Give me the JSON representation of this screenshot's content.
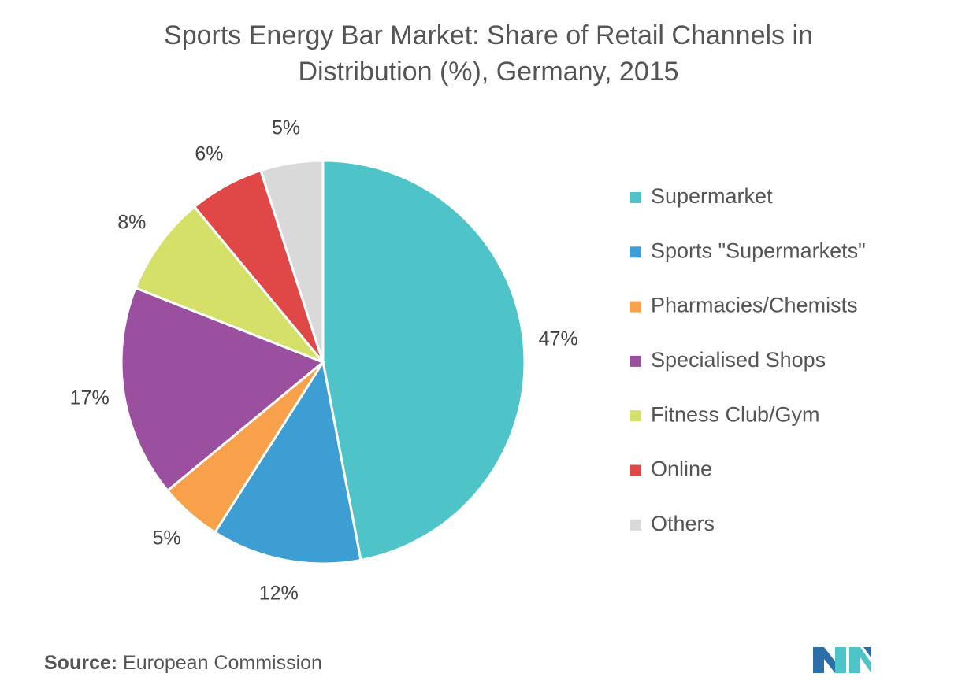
{
  "chart_data": {
    "type": "pie",
    "title": "Sports Energy Bar Market: Share of Retail Channels in Distribution (%),  Germany, 2015",
    "categories": [
      "Supermarket",
      "Sports \"Supermarkets\"",
      "Pharmacies/Chemists",
      "Specialised Shops",
      "Fitness Club/Gym",
      "Online",
      "Others"
    ],
    "values": [
      47,
      12,
      5,
      17,
      8,
      6,
      5
    ],
    "value_labels": [
      "47%",
      "12%",
      "5%",
      "17%",
      "8%",
      "6%",
      "5%"
    ],
    "colors": [
      "#4fc4c8",
      "#3d9ed3",
      "#f9a04a",
      "#9a4f9f",
      "#d4e067",
      "#e04848",
      "#d9d9d9"
    ],
    "legend": "right",
    "source_label": "Source:",
    "source": "European Commission"
  }
}
